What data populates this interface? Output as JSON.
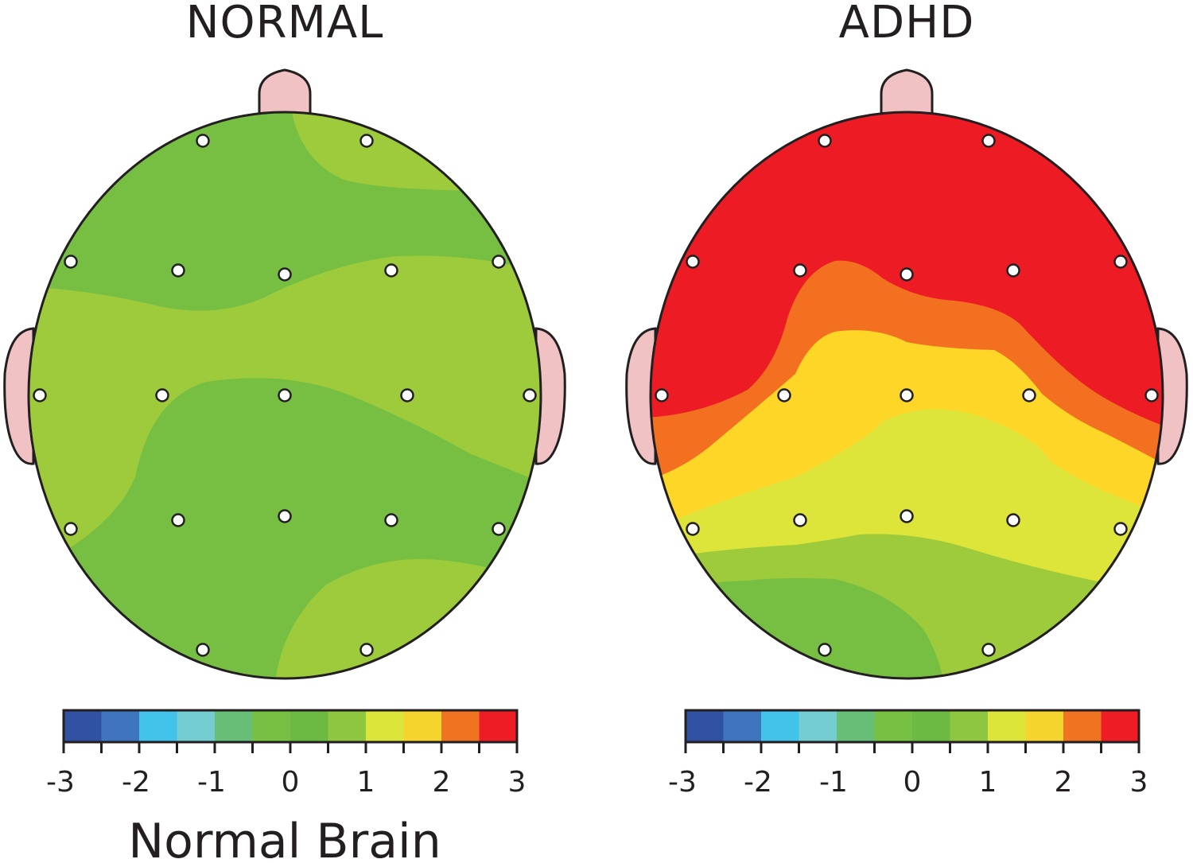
{
  "panels": [
    {
      "title": "NORMAL",
      "pattern": "normal"
    },
    {
      "title": "ADHD",
      "pattern": "adhd"
    }
  ],
  "colorbar": {
    "colors": [
      "#3152a3",
      "#3f75bf",
      "#42c3ea",
      "#74cdd0",
      "#66be77",
      "#78c043",
      "#6cb944",
      "#8ec63f",
      "#dce63a",
      "#f5d42d",
      "#f07322",
      "#ee1d25"
    ],
    "tick_labels": [
      "-3",
      "-2",
      "-1",
      "0",
      "1",
      "2",
      "3"
    ]
  },
  "caption": "Normal Brain",
  "palette": {
    "red": "#ed1c24",
    "orange": "#f37021",
    "yellow": "#fdd627",
    "yellowgreen": "#dde43a",
    "lightgreen": "#9dcb3b",
    "green": "#76bf43",
    "ear": "#f1c2c4",
    "outline": "#231f20"
  }
}
